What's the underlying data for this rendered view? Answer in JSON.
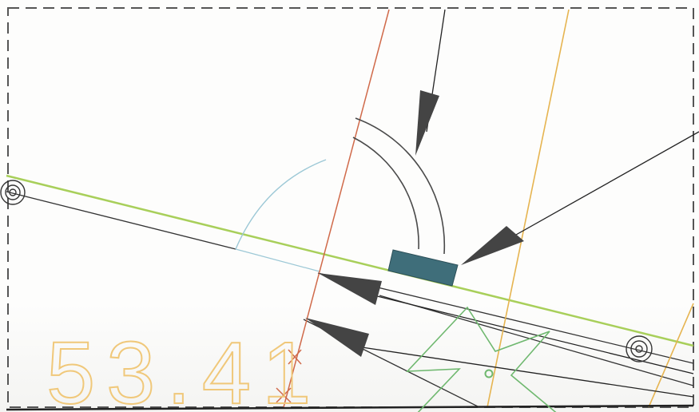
{
  "drawing": {
    "label_text": "53.41",
    "colors": {
      "frame": "#555555",
      "black_line": "#333333",
      "green_line": "#a8cf5a",
      "red_line": "#d06a4a",
      "orange_line": "#e6b450",
      "label": "#f0c87a",
      "star": "#6fb86f",
      "pad": "#3f6e7a",
      "arc": "#4a4a4a",
      "light_arc": "#9cc8d6"
    }
  }
}
